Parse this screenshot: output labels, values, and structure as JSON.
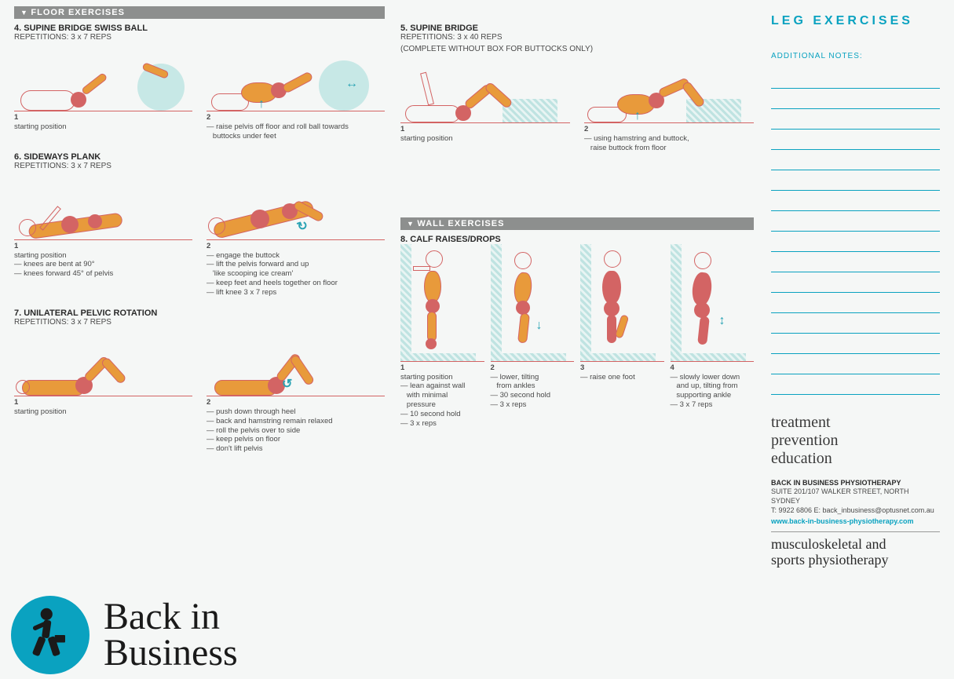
{
  "page": {
    "heading": "LEG EXERCISES",
    "notes_label": "ADDITIONAL NOTES:",
    "note_line_count": 16
  },
  "sections": {
    "floor": "FLOOR EXERCISES",
    "wall": "WALL EXERCISES"
  },
  "ex4": {
    "title": "4. SUPINE BRIDGE SWISS BALL",
    "reps": "REPETITIONS: 3 x 7 REPS",
    "s1_num": "1",
    "s1": "starting position",
    "s2_num": "2",
    "s2": "— raise pelvis off floor and roll ball towards\n   buttocks under feet"
  },
  "ex5": {
    "title": "5. SUPINE BRIDGE",
    "reps": "REPETITIONS: 3 x 40 REPS",
    "note": "(COMPLETE WITHOUT BOX FOR BUTTOCKS ONLY)",
    "s1_num": "1",
    "s1": "starting position",
    "s2_num": "2",
    "s2": "— using hamstring and buttock,\n   raise buttock from floor"
  },
  "ex6": {
    "title": "6. SIDEWAYS PLANK",
    "reps": "REPETITIONS: 3 x 7 REPS",
    "s1_num": "1",
    "s1": "starting position\n— knees are bent at 90°\n— knees forward 45° of pelvis",
    "s2_num": "2",
    "s2": "— engage the buttock\n— lift the pelvis forward and up\n   'like scooping ice cream'\n— keep feet and heels together on floor\n— lift knee 3 x 7 reps"
  },
  "ex7": {
    "title": "7. UNILATERAL PELVIC ROTATION",
    "reps": "REPETITIONS: 3 x 7 REPS",
    "s1_num": "1",
    "s1": "starting position",
    "s2_num": "2",
    "s2": "— push down through heel\n— back and hamstring remain relaxed\n— roll the pelvis over to side\n— keep pelvis on floor\n— don't lift pelvis"
  },
  "ex8": {
    "title": "8. CALF RAISES/DROPS",
    "s1_num": "1",
    "s1": "starting position\n— lean against wall\n   with minimal\n   pressure\n— 10 second hold\n— 3 x reps",
    "s2_num": "2",
    "s2": "— lower, tilting\n   from ankles\n— 30 second hold\n— 3 x reps",
    "s3_num": "3",
    "s3": "— raise one foot",
    "s4_num": "4",
    "s4": "— slowly lower down\n   and up, tilting from\n   supporting ankle\n— 3 x 7 reps"
  },
  "tagline": {
    "l1": "treatment",
    "l2": "prevention",
    "l3": "education"
  },
  "clinic": {
    "name": "BACK IN BUSINESS PHYSIOTHERAPY",
    "addr": "SUITE 201/107 WALKER STREET, NORTH SYDNEY",
    "contact": "T: 9922 6806   E: back_inbusiness@optusnet.com.au",
    "url": "www.back-in-business-physiotherapy.com"
  },
  "subhead": {
    "l1": "musculoskeletal and",
    "l2": "sports physiotherapy"
  },
  "logo": {
    "l1": "Back in",
    "l2": "Business"
  },
  "colors": {
    "accent": "#0aa2c0",
    "bar": "#8d8f8e",
    "body_fill": "#e89a3b",
    "body_dark": "#d36464",
    "ball": "#c7e8e6",
    "bg": "#f5f7f6"
  }
}
